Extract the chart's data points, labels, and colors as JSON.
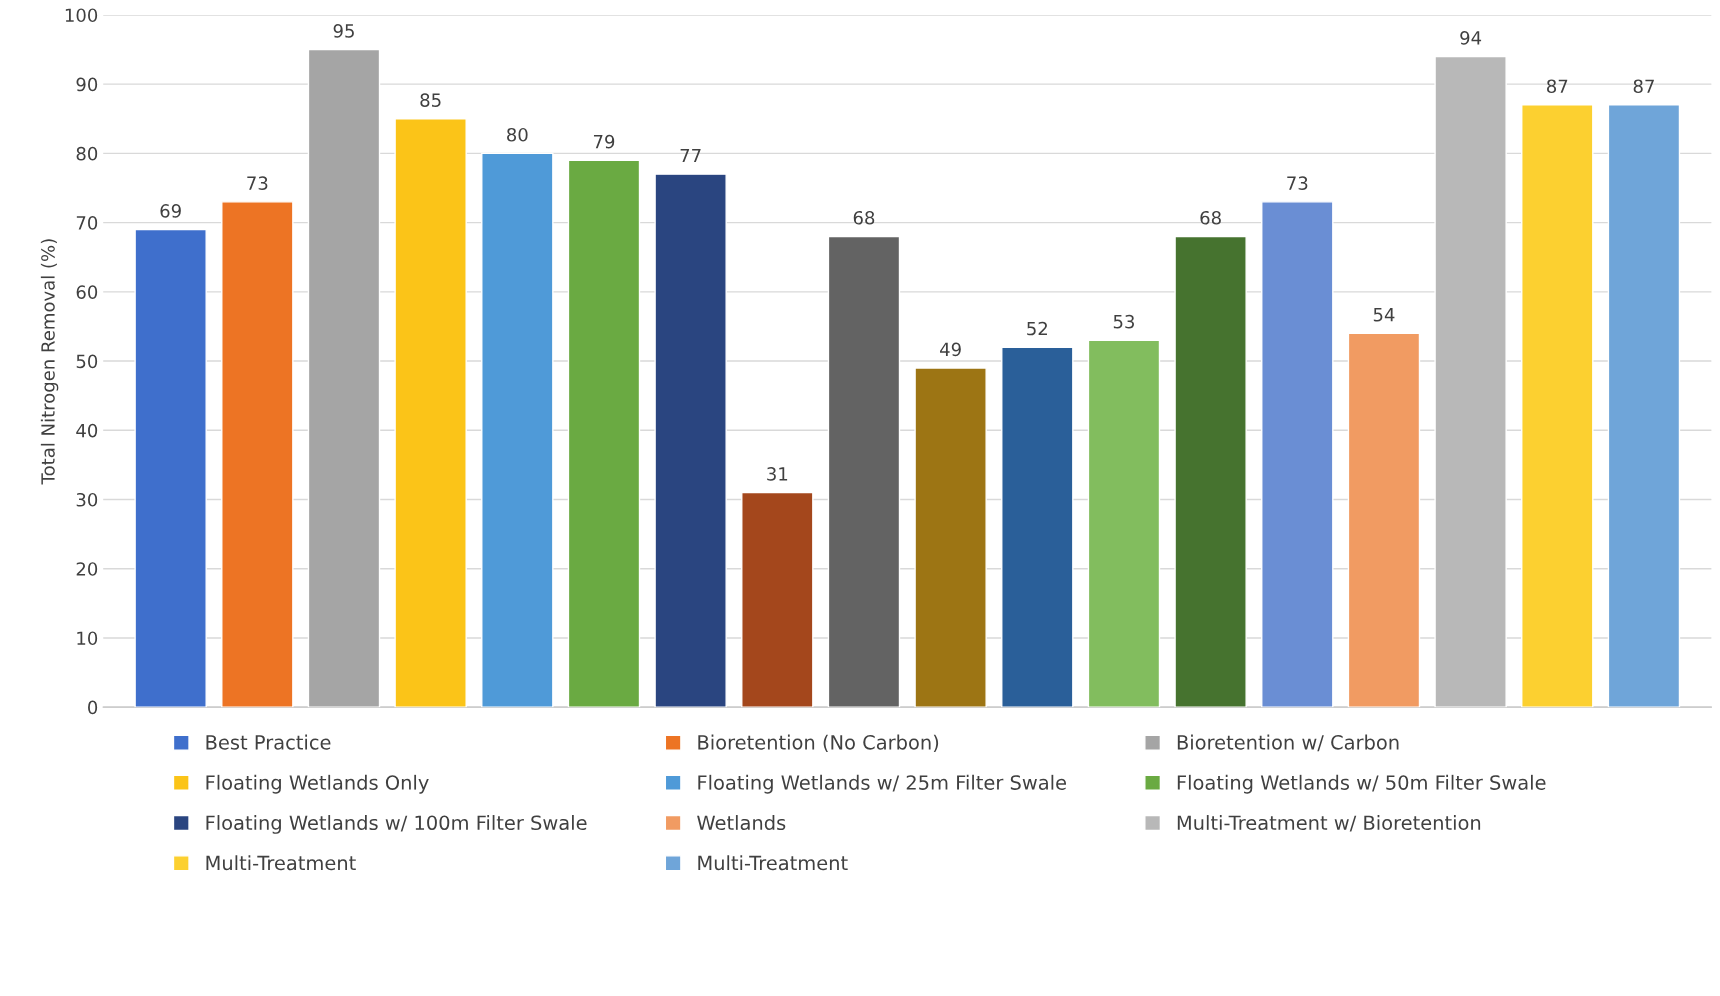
{
  "chart_data": {
    "type": "bar",
    "ylabel": "Total Nitrogen Removal (%)",
    "categories": [
      null
    ],
    "series": [
      {
        "name": "Best Practice",
        "color": "#3f6fcc",
        "values": [
          69
        ]
      },
      {
        "name": "Bioretention (No Carbon)",
        "color": "#ed7424",
        "values": [
          73
        ]
      },
      {
        "name": "Bioretention w/ Carbon",
        "color": "#a5a5a5",
        "values": [
          95
        ]
      },
      {
        "name": "Floating Wetlands Only",
        "color": "#fbc418",
        "values": [
          85
        ]
      },
      {
        "name": "Floating Wetlands w/ 25m Filter Swale",
        "color": "#4f9ad8",
        "values": [
          80
        ]
      },
      {
        "name": "Floating Wetlands w/ 50m Filter Swale",
        "color": "#6aaa42",
        "values": [
          79
        ]
      },
      {
        "name": "Floating Wetlands w/ 100m Filter Swale",
        "color": "#2a4580",
        "values": [
          77
        ]
      },
      {
        "color": "#a4471c",
        "values": [
          31
        ]
      },
      {
        "color": "#636363",
        "values": [
          68
        ]
      },
      {
        "color": "#9d7514",
        "values": [
          49
        ]
      },
      {
        "color": "#2a5f99",
        "values": [
          52
        ]
      },
      {
        "color": "#82bd5e",
        "values": [
          53
        ]
      },
      {
        "color": "#46732f",
        "values": [
          68
        ]
      },
      {
        "color": "#6a8ed4",
        "values": [
          73
        ]
      },
      {
        "name": "Wetlands",
        "color": "#f19b62",
        "values": [
          54
        ]
      },
      {
        "name": "Multi-Treatment w/ Bioretention",
        "color": "#b8b8b8",
        "values": [
          94
        ]
      },
      {
        "name": "Multi-Treatment",
        "color": "#fcd030",
        "values": [
          87
        ]
      },
      {
        "name": "Multi-Treatment",
        "color": "#6fa5d9",
        "values": [
          87
        ]
      }
    ],
    "data_labels": true,
    "ylim": [
      0,
      100
    ],
    "yticks": [
      0,
      10,
      20,
      30,
      40,
      50,
      60,
      70,
      80,
      90,
      100
    ],
    "grid": "y",
    "legend": "bottom",
    "tick_labels": "y"
  }
}
